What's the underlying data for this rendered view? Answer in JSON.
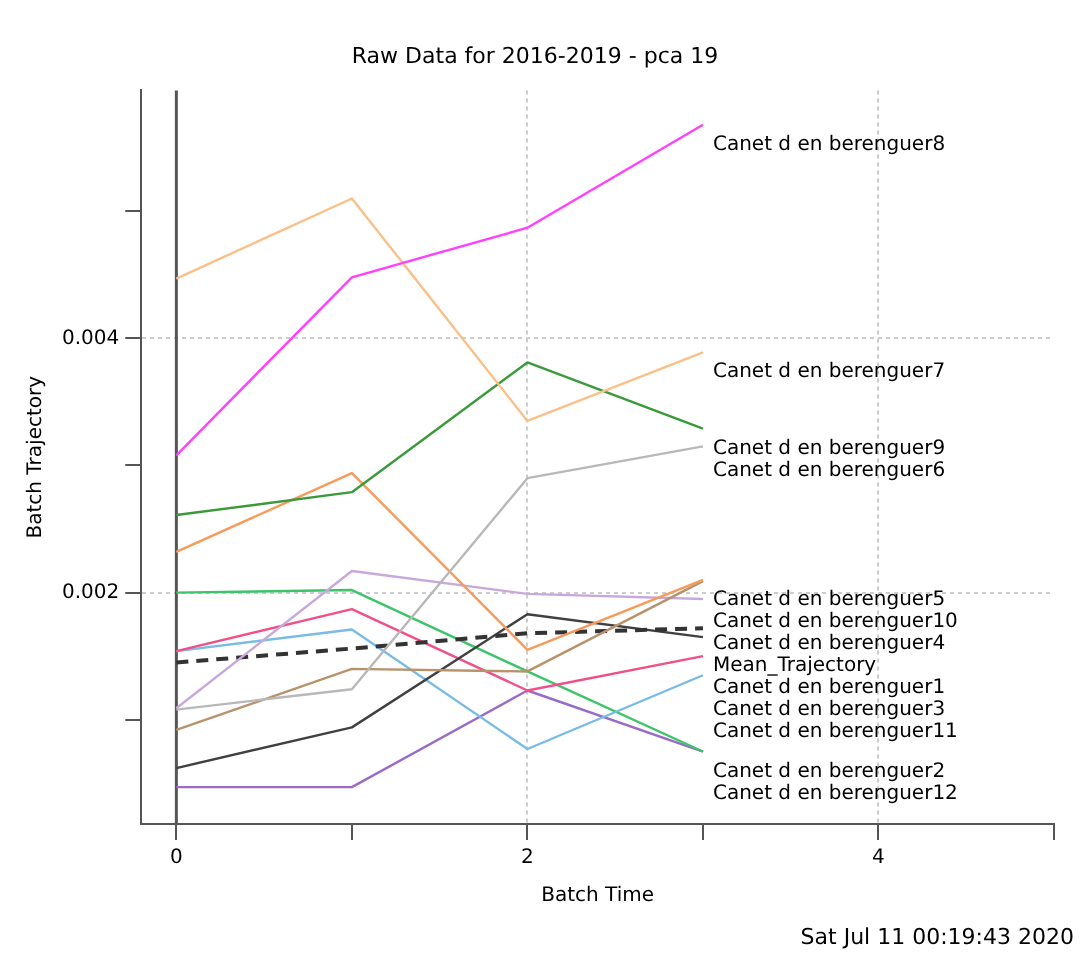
{
  "chart_data": {
    "type": "line",
    "title": "Raw Data for 2016-2019 - pca 19",
    "xlabel": "Batch Time",
    "ylabel": "Batch Trajectory",
    "x": [
      0,
      1,
      2,
      3
    ],
    "xlim": [
      -0.2,
      5
    ],
    "xticks": [
      0,
      {
        "value": 1,
        "label": null
      },
      2,
      {
        "value": 3,
        "label": null
      },
      4,
      {
        "value": 5,
        "label": null
      }
    ],
    "ylim": [
      0.00018,
      0.00595
    ],
    "yticks": [
      {
        "value": 0.001,
        "label": null
      },
      0.002,
      {
        "value": 0.003,
        "label": null
      },
      0.004,
      {
        "value": 0.005,
        "label": null
      }
    ],
    "grid": true,
    "legend": false,
    "marker": "none",
    "ref_lines": [
      {
        "axis": "x",
        "value": 0,
        "color": "#555555"
      }
    ],
    "series": [
      {
        "name": "Canet d en berenguer8",
        "color": "#ff40ff",
        "values": [
          0.00308,
          0.00448,
          0.00487,
          0.00568
        ]
      },
      {
        "name": "Canet d en berenguer7",
        "color": "#fbc08a",
        "values": [
          0.00447,
          0.0051,
          0.00335,
          0.00389
        ]
      },
      {
        "name": "Canet d en berenguer9",
        "color": "#3a9a3a",
        "values": [
          0.00261,
          0.00279,
          0.00381,
          0.00329
        ]
      },
      {
        "name": "Canet d en berenguer6",
        "color": "#b8b8b8",
        "values": [
          0.00108,
          0.00124,
          0.0029,
          0.00315
        ]
      },
      {
        "name": "Canet d en berenguer5",
        "color": "#f79a5a",
        "values": [
          0.00232,
          0.00294,
          0.00155,
          0.0021
        ]
      },
      {
        "name": "Canet d en berenguer10",
        "color": "#b8926a",
        "values": [
          0.00092,
          0.0014,
          0.00138,
          0.00209
        ]
      },
      {
        "name": "Canet d en berenguer4",
        "color": "#c8a8dc",
        "values": [
          0.00109,
          0.00217,
          0.00199,
          0.00195
        ]
      },
      {
        "name": "Mean_Trajectory",
        "color": "#333333",
        "line_style": "dashed",
        "values": [
          0.00145,
          0.00156,
          0.00168,
          0.00172
        ]
      },
      {
        "name": "Canet d en berenguer1",
        "color": "#404040",
        "values": [
          0.00062,
          0.00094,
          0.00183,
          0.00165
        ]
      },
      {
        "name": "Canet d en berenguer3",
        "color": "#f0508a",
        "values": [
          0.00154,
          0.00187,
          0.00123,
          0.0015
        ]
      },
      {
        "name": "Canet d en berenguer11",
        "color": "#78bce6",
        "values": [
          0.00154,
          0.00171,
          0.00077,
          0.00135
        ]
      },
      {
        "name": "Canet d en berenguer2",
        "color": "#3cc46a",
        "values": [
          0.002,
          0.00202,
          0.00138,
          0.00075
        ]
      },
      {
        "name": "Canet d en berenguer12",
        "color": "#9a6ac8",
        "values": [
          0.00047,
          0.00047,
          0.00123,
          0.00075
        ]
      }
    ],
    "annotations": [
      "Sat Jul 11 00:19:43 2020"
    ]
  }
}
